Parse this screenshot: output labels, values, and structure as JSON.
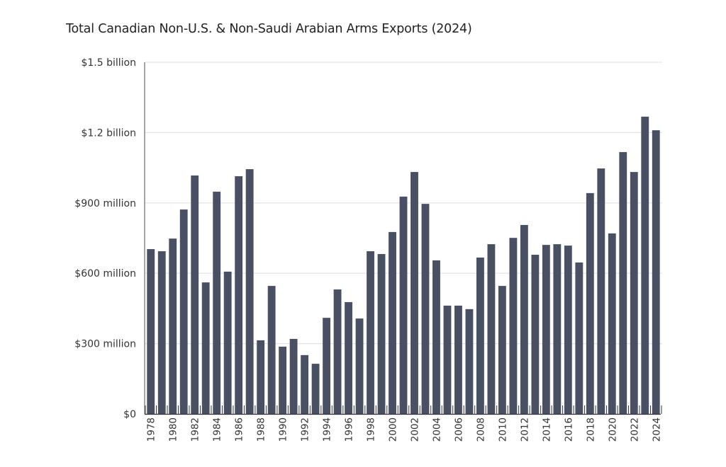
{
  "chart_data": {
    "type": "bar",
    "title": "Total Canadian Non-U.S. & Non-Saudi Arabian Arms Exports (2024)",
    "xlabel": "",
    "ylabel": "",
    "units": "USD millions",
    "ylim": [
      0,
      1500
    ],
    "yticks": [
      0,
      300,
      600,
      900,
      1200,
      1500
    ],
    "ytick_labels": [
      "$0",
      "$300 million",
      "$600 million",
      "$900 million",
      "$1.2 billion",
      "$1.5 billion"
    ],
    "grid": true,
    "legend": "none",
    "bar_color": "#4a5064",
    "categories": [
      "1978",
      "1979",
      "1980",
      "1981",
      "1982",
      "1983",
      "1984",
      "1985",
      "1986",
      "1987",
      "1988",
      "1989",
      "1990",
      "1991",
      "1992",
      "1993",
      "1994",
      "1995",
      "1996",
      "1997",
      "1998",
      "1999",
      "2000",
      "2001",
      "2002",
      "2003",
      "2004",
      "2005",
      "2006",
      "2007",
      "2008",
      "2009",
      "2010",
      "2011",
      "2012",
      "2013",
      "2014",
      "2015",
      "2016",
      "2017",
      "2018",
      "2019",
      "2020",
      "2021",
      "2022",
      "2023",
      "2024"
    ],
    "xtick_labels": [
      "1978",
      "1980",
      "1982",
      "1984",
      "1986",
      "1988",
      "1990",
      "1992",
      "1994",
      "1996",
      "1998",
      "2000",
      "2002",
      "2004",
      "2006",
      "2008",
      "2010",
      "2012",
      "2014",
      "2016",
      "2018",
      "2020",
      "2022",
      "2024"
    ],
    "values": [
      703,
      694,
      748,
      872,
      1017,
      561,
      948,
      607,
      1014,
      1044,
      314,
      546,
      287,
      320,
      251,
      214,
      410,
      531,
      477,
      407,
      694,
      682,
      776,
      927,
      1032,
      896,
      655,
      462,
      462,
      447,
      667,
      724,
      546,
      751,
      806,
      679,
      721,
      724,
      718,
      646,
      942,
      1047,
      770,
      1117,
      1032,
      1268,
      1210
    ]
  }
}
